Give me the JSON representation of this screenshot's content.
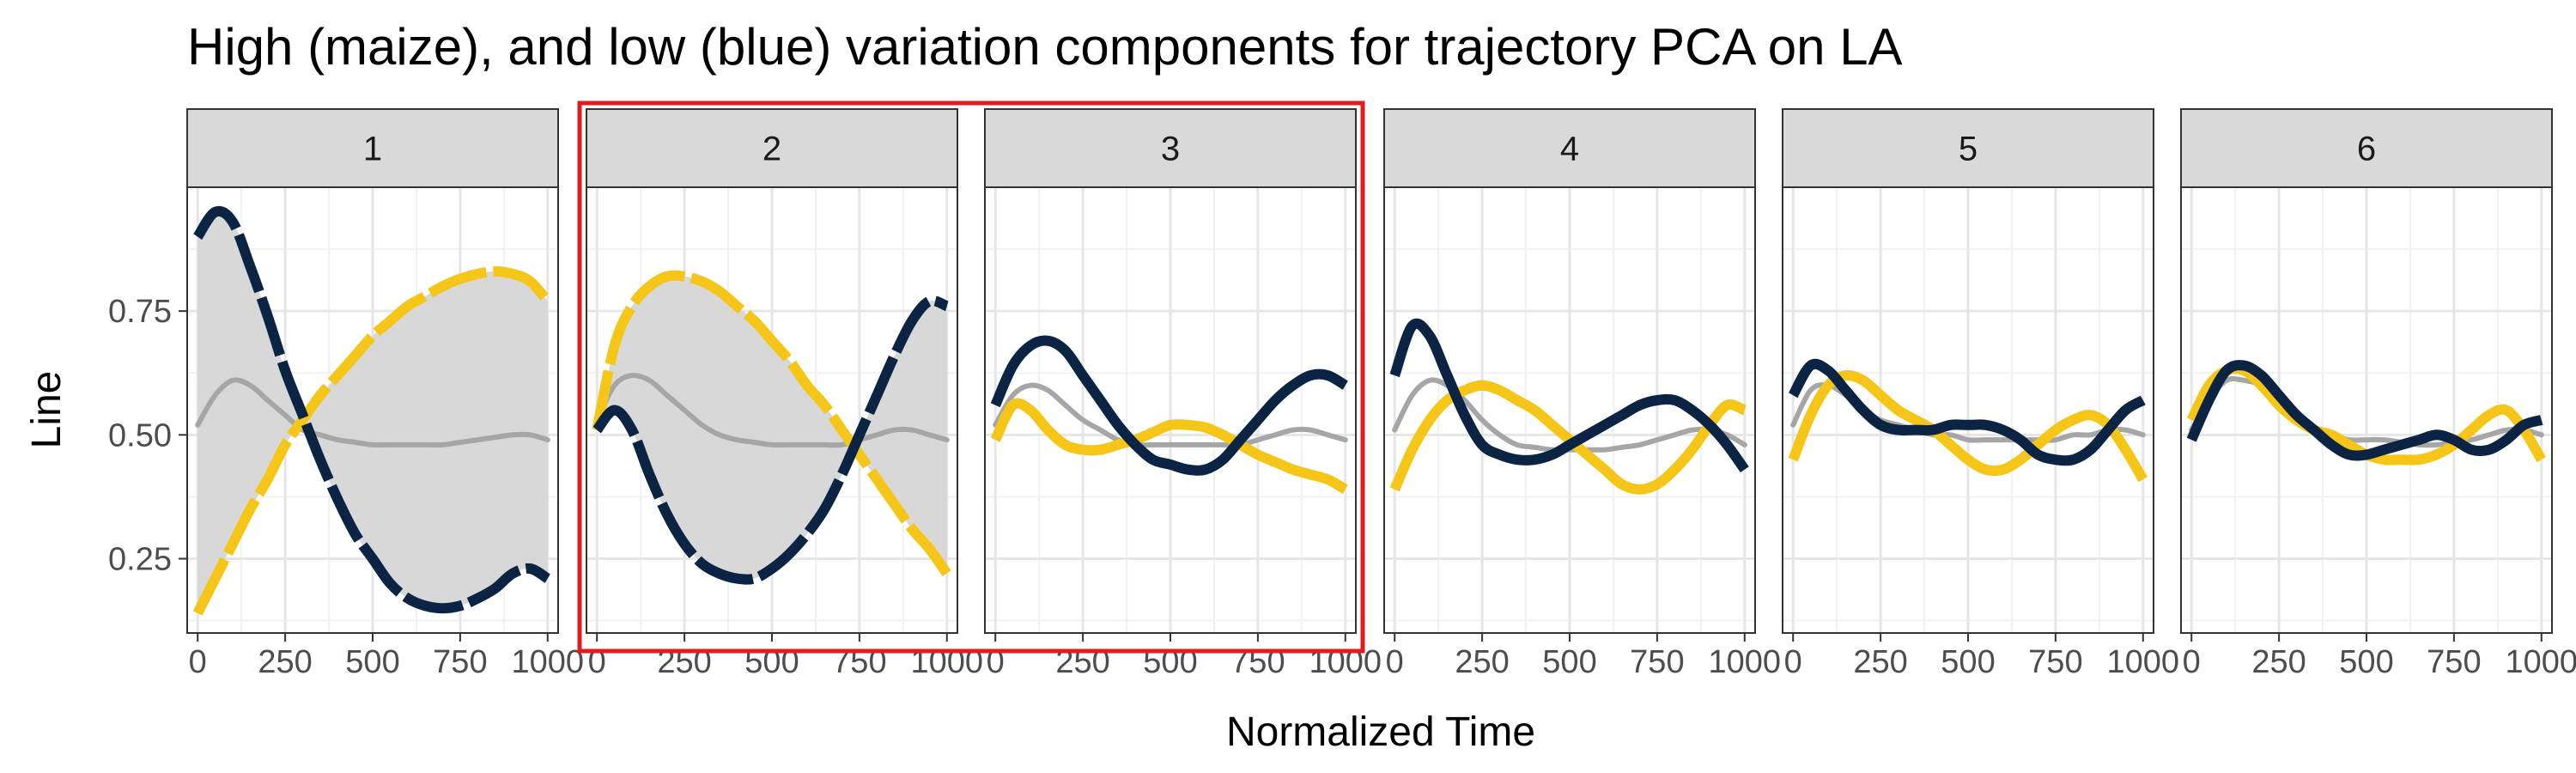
{
  "chart_data": {
    "type": "line",
    "title": "High (maize), and low (blue) variation components for trajectory PCA on LA",
    "xlabel": "Normalized Time",
    "ylabel": "Line",
    "xlim": [
      -30,
      1030
    ],
    "ylim": [
      0.1,
      1.0
    ],
    "x_ticks": [
      0,
      250,
      500,
      750,
      1000
    ],
    "x_tick_labels": [
      "0",
      "250",
      "500",
      "750",
      "1000"
    ],
    "y_ticks": [
      0.25,
      0.5,
      0.75
    ],
    "y_tick_labels": [
      "0.25",
      "0.50",
      "0.75"
    ],
    "grid": true,
    "legend": "none",
    "colors": {
      "maize": "#f5c518",
      "blue": "#0b2444",
      "mean": "#a6a6a6",
      "ribbon": "#d6d6d6",
      "highlight": "#e41a1c"
    },
    "x": [
      0,
      50,
      100,
      150,
      200,
      250,
      300,
      350,
      400,
      450,
      500,
      550,
      600,
      650,
      700,
      750,
      800,
      850,
      900,
      950,
      1000
    ],
    "highlight_panels": [
      "2",
      "3"
    ],
    "panels": [
      {
        "label": "1",
        "ribbon": true,
        "mean": [
          0.52,
          0.58,
          0.61,
          0.6,
          0.57,
          0.54,
          0.51,
          0.5,
          0.49,
          0.485,
          0.48,
          0.48,
          0.48,
          0.48,
          0.48,
          0.485,
          0.49,
          0.495,
          0.5,
          0.5,
          0.49
        ],
        "maize": [
          0.14,
          0.21,
          0.28,
          0.35,
          0.41,
          0.48,
          0.53,
          0.58,
          0.62,
          0.66,
          0.7,
          0.73,
          0.76,
          0.78,
          0.8,
          0.815,
          0.825,
          0.83,
          0.825,
          0.81,
          0.77
        ],
        "blue": [
          0.9,
          0.95,
          0.93,
          0.84,
          0.74,
          0.63,
          0.54,
          0.45,
          0.37,
          0.3,
          0.25,
          0.2,
          0.17,
          0.155,
          0.15,
          0.155,
          0.17,
          0.19,
          0.22,
          0.23,
          0.21
        ]
      },
      {
        "label": "2",
        "ribbon": true,
        "mean": [
          0.53,
          0.6,
          0.62,
          0.61,
          0.58,
          0.55,
          0.52,
          0.5,
          0.49,
          0.485,
          0.48,
          0.48,
          0.48,
          0.48,
          0.48,
          0.49,
          0.5,
          0.51,
          0.51,
          0.5,
          0.49
        ],
        "maize": [
          0.51,
          0.68,
          0.76,
          0.8,
          0.82,
          0.82,
          0.81,
          0.79,
          0.76,
          0.73,
          0.69,
          0.65,
          0.6,
          0.56,
          0.51,
          0.46,
          0.41,
          0.36,
          0.31,
          0.27,
          0.22
        ],
        "blue": [
          0.51,
          0.55,
          0.51,
          0.42,
          0.34,
          0.28,
          0.24,
          0.22,
          0.21,
          0.21,
          0.23,
          0.26,
          0.3,
          0.35,
          0.42,
          0.5,
          0.58,
          0.66,
          0.73,
          0.77,
          0.76
        ]
      },
      {
        "label": "3",
        "ribbon": false,
        "mean": [
          0.52,
          0.58,
          0.6,
          0.59,
          0.56,
          0.53,
          0.51,
          0.49,
          0.48,
          0.48,
          0.48,
          0.48,
          0.48,
          0.48,
          0.48,
          0.49,
          0.5,
          0.51,
          0.51,
          0.5,
          0.49
        ],
        "maize": [
          0.49,
          0.56,
          0.55,
          0.51,
          0.48,
          0.47,
          0.47,
          0.48,
          0.49,
          0.505,
          0.52,
          0.52,
          0.515,
          0.5,
          0.48,
          0.46,
          0.445,
          0.43,
          0.42,
          0.41,
          0.39
        ],
        "blue": [
          0.56,
          0.64,
          0.68,
          0.69,
          0.67,
          0.62,
          0.57,
          0.52,
          0.48,
          0.45,
          0.44,
          0.43,
          0.43,
          0.45,
          0.49,
          0.53,
          0.57,
          0.6,
          0.62,
          0.62,
          0.6
        ]
      },
      {
        "label": "4",
        "ribbon": false,
        "mean": [
          0.51,
          0.58,
          0.61,
          0.6,
          0.57,
          0.53,
          0.5,
          0.48,
          0.475,
          0.47,
          0.47,
          0.47,
          0.47,
          0.475,
          0.48,
          0.49,
          0.5,
          0.51,
          0.51,
          0.5,
          0.48
        ],
        "maize": [
          0.39,
          0.47,
          0.53,
          0.57,
          0.59,
          0.6,
          0.59,
          0.57,
          0.55,
          0.52,
          0.49,
          0.46,
          0.43,
          0.4,
          0.39,
          0.4,
          0.43,
          0.47,
          0.52,
          0.56,
          0.55
        ],
        "blue": [
          0.62,
          0.72,
          0.7,
          0.62,
          0.54,
          0.48,
          0.46,
          0.45,
          0.45,
          0.46,
          0.48,
          0.5,
          0.52,
          0.54,
          0.56,
          0.57,
          0.57,
          0.55,
          0.52,
          0.48,
          0.43
        ]
      },
      {
        "label": "5",
        "ribbon": false,
        "mean": [
          0.52,
          0.59,
          0.6,
          0.58,
          0.55,
          0.53,
          0.52,
          0.51,
          0.5,
          0.5,
          0.49,
          0.49,
          0.49,
          0.49,
          0.49,
          0.49,
          0.5,
          0.5,
          0.51,
          0.51,
          0.5
        ],
        "maize": [
          0.45,
          0.54,
          0.6,
          0.62,
          0.61,
          0.58,
          0.55,
          0.53,
          0.51,
          0.48,
          0.45,
          0.43,
          0.43,
          0.45,
          0.48,
          0.51,
          0.53,
          0.54,
          0.52,
          0.47,
          0.41
        ],
        "blue": [
          0.58,
          0.64,
          0.63,
          0.59,
          0.55,
          0.52,
          0.51,
          0.51,
          0.51,
          0.52,
          0.52,
          0.52,
          0.51,
          0.49,
          0.46,
          0.45,
          0.45,
          0.47,
          0.51,
          0.55,
          0.57
        ]
      },
      {
        "label": "6",
        "ribbon": false,
        "mean": [
          0.51,
          0.57,
          0.61,
          0.61,
          0.6,
          0.57,
          0.54,
          0.51,
          0.5,
          0.49,
          0.49,
          0.49,
          0.485,
          0.48,
          0.48,
          0.485,
          0.49,
          0.5,
          0.51,
          0.51,
          0.5
        ],
        "maize": [
          0.53,
          0.6,
          0.63,
          0.63,
          0.6,
          0.56,
          0.53,
          0.51,
          0.5,
          0.48,
          0.46,
          0.45,
          0.45,
          0.45,
          0.46,
          0.48,
          0.51,
          0.54,
          0.55,
          0.51,
          0.45
        ],
        "blue": [
          0.49,
          0.57,
          0.63,
          0.64,
          0.62,
          0.58,
          0.54,
          0.51,
          0.48,
          0.46,
          0.46,
          0.47,
          0.48,
          0.49,
          0.5,
          0.49,
          0.47,
          0.47,
          0.49,
          0.52,
          0.53
        ]
      }
    ]
  }
}
